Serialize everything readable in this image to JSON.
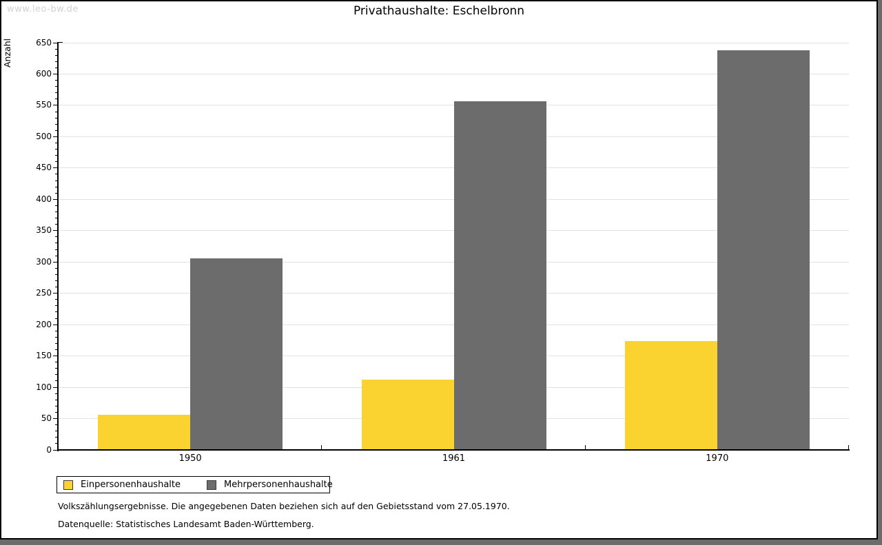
{
  "watermark": "www.leo-bw.de",
  "title": "Privathaushalte: Eschelbronn",
  "chart_data": {
    "type": "bar",
    "title": "Privathaushalte: Eschelbronn",
    "categories": [
      "1950",
      "1961",
      "1970"
    ],
    "series": [
      {
        "name": "Einpersonenhaushalte",
        "color": "#fbd330",
        "values": [
          55,
          112,
          173
        ]
      },
      {
        "name": "Mehrpersonenhaushalte",
        "color": "#6c6c6c",
        "values": [
          305,
          556,
          637
        ]
      }
    ],
    "xlabel": "",
    "ylabel": "Anzahl",
    "ylim": [
      0,
      650
    ],
    "yticks": [
      0,
      50,
      100,
      150,
      200,
      250,
      300,
      350,
      400,
      450,
      500,
      550,
      600,
      650
    ],
    "minor_tick_step": 10,
    "grid": true,
    "legend_position": "bottom-left",
    "legend_border": true
  },
  "footnotes": [
    "Volkszählungsergebnisse. Die angegebenen Daten beziehen sich auf den Gebietsstand vom 27.05.1970.",
    "Datenquelle: Statistisches Landesamt Baden-Württemberg."
  ]
}
